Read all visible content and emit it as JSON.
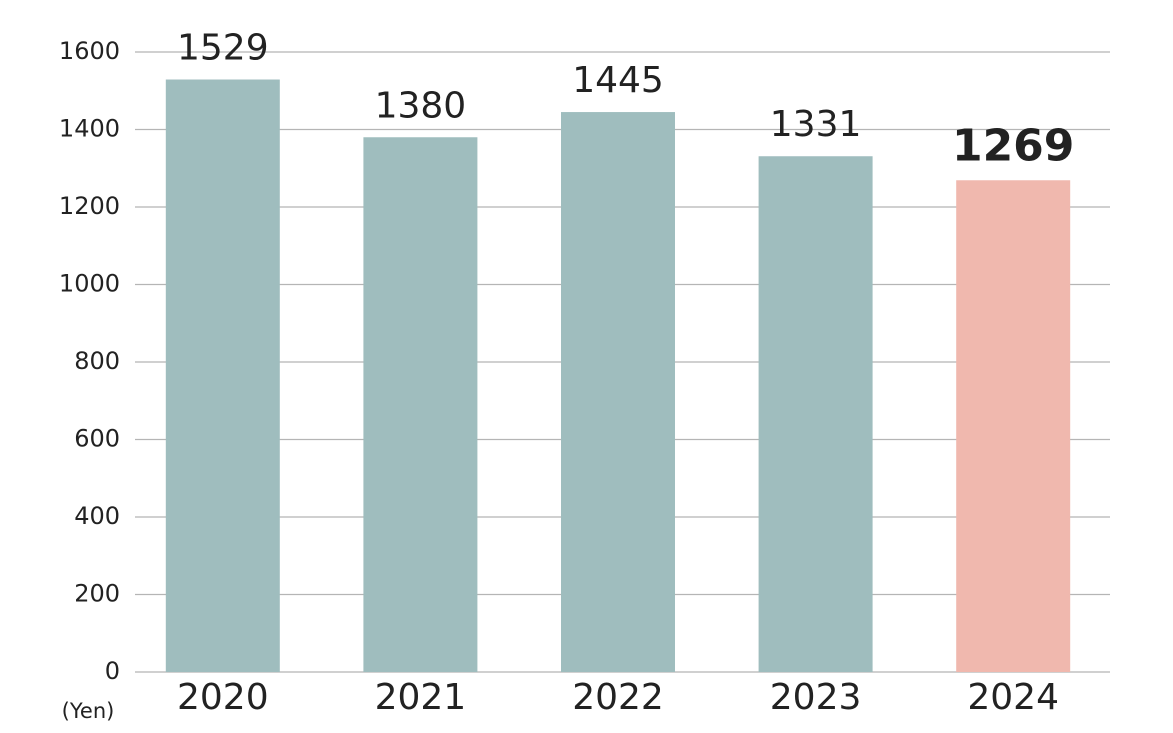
{
  "chart_data": {
    "type": "bar",
    "categories": [
      "2020",
      "2021",
      "2022",
      "2023",
      "2024"
    ],
    "values": [
      1529,
      1380,
      1445,
      1331,
      1269
    ],
    "colors": [
      "#9fbdbe",
      "#9fbdbe",
      "#9fbdbe",
      "#9fbdbe",
      "#f0b8ae"
    ],
    "y_axis_label": "(Yen)",
    "ylim": [
      0,
      1600
    ],
    "yticks": [
      0,
      200,
      400,
      600,
      800,
      1000,
      1200,
      1400,
      1600
    ],
    "grid": true
  }
}
